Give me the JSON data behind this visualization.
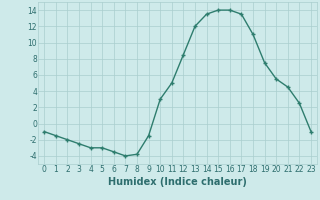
{
  "x": [
    0,
    1,
    2,
    3,
    4,
    5,
    6,
    7,
    8,
    9,
    10,
    11,
    12,
    13,
    14,
    15,
    16,
    17,
    18,
    19,
    20,
    21,
    22,
    23
  ],
  "y": [
    -1,
    -1.5,
    -2,
    -2.5,
    -3,
    -3,
    -3.5,
    -4,
    -3.8,
    -1.5,
    3,
    5,
    8.5,
    12,
    13.5,
    14,
    14,
    13.5,
    11,
    7.5,
    5.5,
    4.5,
    2.5,
    -1
  ],
  "line_color": "#2e7d6e",
  "marker": "P",
  "marker_size": 2.5,
  "bg_color": "#ceeaea",
  "grid_color": "#aacece",
  "xlabel": "Humidex (Indice chaleur)",
  "xlabel_fontsize": 7,
  "xlim": [
    -0.5,
    23.5
  ],
  "ylim": [
    -5,
    15
  ],
  "yticks": [
    -4,
    -2,
    0,
    2,
    4,
    6,
    8,
    10,
    12,
    14
  ],
  "xticks": [
    0,
    1,
    2,
    3,
    4,
    5,
    6,
    7,
    8,
    9,
    10,
    11,
    12,
    13,
    14,
    15,
    16,
    17,
    18,
    19,
    20,
    21,
    22,
    23
  ],
  "tick_fontsize": 5.5,
  "line_width": 1.0,
  "tick_color": "#2e6e6e"
}
